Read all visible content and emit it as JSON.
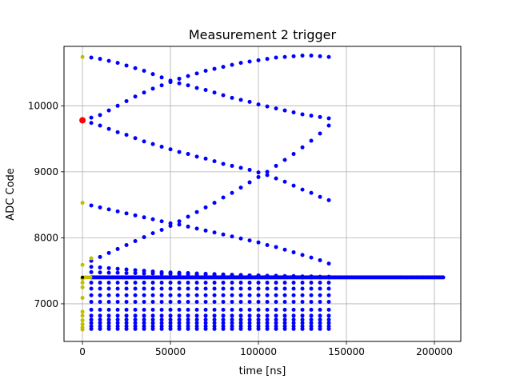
{
  "chart_data": {
    "type": "scatter",
    "title": "Measurement 2 trigger",
    "xlabel": "time [ns]",
    "ylabel": "ADC Code",
    "xlim": [
      -10500,
      215000
    ],
    "ylim": [
      6430,
      10900
    ],
    "x_ticks": [
      0,
      50000,
      100000,
      150000,
      200000
    ],
    "x_tick_labels": [
      "0",
      "50000",
      "100000",
      "150000",
      "200000"
    ],
    "y_ticks": [
      7000,
      8000,
      9000,
      10000
    ],
    "y_tick_labels": [
      "7000",
      "8000",
      "9000",
      "10000"
    ],
    "grid": true,
    "legend": "none",
    "series": [
      {
        "color": "#0000ff",
        "marker_size": 5,
        "groups": [
          {
            "x_start": 5000,
            "x_end": 140000,
            "count": 28,
            "y": [
              10730,
              10710,
              10680,
              10650,
              10610,
              10570,
              10530,
              10480,
              10430,
              10380,
              10340,
              10310,
              10270,
              10240,
              10200,
              10160,
              10120,
              10090,
              10060,
              10020,
              9990,
              9960,
              9930,
              9900,
              9870,
              9850,
              9830,
              9810
            ]
          },
          {
            "x_start": 5000,
            "x_end": 140000,
            "count": 28,
            "y": [
              9820,
              9860,
              9930,
              10000,
              10070,
              10140,
              10200,
              10260,
              10310,
              10360,
              10410,
              10450,
              10490,
              10530,
              10560,
              10590,
              10620,
              10650,
              10670,
              10690,
              10710,
              10730,
              10740,
              10750,
              10760,
              10760,
              10750,
              10740
            ]
          },
          {
            "x_start": 5000,
            "x_end": 140000,
            "count": 28,
            "y": [
              9740,
              9700,
              9650,
              9600,
              9560,
              9510,
              9460,
              9420,
              9380,
              9340,
              9300,
              9270,
              9230,
              9200,
              9160,
              9120,
              9090,
              9060,
              9030,
              8990,
              8950,
              8900,
              8850,
              8790,
              8730,
              8680,
              8620,
              8570
            ]
          },
          {
            "x_start": 5000,
            "x_end": 140000,
            "count": 28,
            "y": [
              7650,
              7710,
              7770,
              7830,
              7890,
              7950,
              8010,
              8070,
              8120,
              8180,
              8250,
              8320,
              8390,
              8460,
              8530,
              8610,
              8680,
              8760,
              8840,
              8920,
              9000,
              9090,
              9180,
              9270,
              9370,
              9470,
              9580,
              9700
            ]
          },
          {
            "x_start": 5000,
            "x_end": 140000,
            "count": 28,
            "y": [
              8490,
              8460,
              8430,
              8400,
              8370,
              8340,
              8310,
              8280,
              8250,
              8220,
              8200,
              8170,
              8140,
              8110,
              8080,
              8050,
              8020,
              7990,
              7960,
              7930,
              7890,
              7860,
              7820,
              7780,
              7740,
              7700,
              7660,
              7610
            ]
          },
          {
            "x_start": 5000,
            "x_end": 140000,
            "count": 28,
            "y": [
              7560,
              7550,
              7540,
              7530,
              7520,
              7510,
              7500,
              7490,
              7480,
              7475,
              7470,
              7465,
              7460,
              7455,
              7450,
              7445,
              7440,
              7435,
              7430,
              7425,
              7420,
              7415,
              7410,
              7405,
              7400,
              7400,
              7400,
              7400
            ]
          },
          {
            "x_start": 5000,
            "x_end": 140000,
            "count": 28,
            "y": [
              7480,
              7475,
              7470,
              7470,
              7465,
              7465,
              7460,
              7460,
              7455,
              7455,
              7450,
              7450,
              7445,
              7445,
              7440,
              7440,
              7435,
              7435,
              7430,
              7430,
              7425,
              7425,
              7420,
              7420,
              7415,
              7415,
              7410,
              7410
            ]
          },
          {
            "x_start": 5000,
            "x_end": 140000,
            "count": 28,
            "level": 7320
          },
          {
            "x_start": 5000,
            "x_end": 140000,
            "count": 28,
            "level": 7230
          },
          {
            "x_start": 5000,
            "x_end": 140000,
            "count": 28,
            "level": 7130
          },
          {
            "x_start": 5000,
            "x_end": 140000,
            "count": 28,
            "level": 7030
          },
          {
            "x_start": 5000,
            "x_end": 140000,
            "count": 28,
            "level": 6910
          },
          {
            "x_start": 5000,
            "x_end": 140000,
            "count": 28,
            "level": 6820
          },
          {
            "x_start": 5000,
            "x_end": 140000,
            "count": 28,
            "level": 6760
          },
          {
            "x_start": 5000,
            "x_end": 140000,
            "count": 28,
            "level": 6710
          },
          {
            "x_start": 5000,
            "x_end": 140000,
            "count": 28,
            "level": 6660
          },
          {
            "x_start": 5000,
            "x_end": 140000,
            "count": 28,
            "level": 6620
          },
          {
            "x_start": 5000,
            "x_end": 205000,
            "count": 200,
            "level": 7400
          }
        ]
      },
      {
        "color": "#bfbf00",
        "marker_size": 5,
        "points": [
          [
            0,
            10740
          ],
          [
            0,
            8530
          ],
          [
            0,
            7590
          ],
          [
            0,
            7400
          ],
          [
            0,
            7380
          ],
          [
            0,
            7320
          ],
          [
            0,
            7250
          ],
          [
            0,
            7090
          ],
          [
            0,
            6880
          ],
          [
            0,
            6820
          ],
          [
            0,
            6750
          ],
          [
            0,
            6690
          ],
          [
            0,
            6640
          ],
          [
            0,
            6610
          ],
          [
            1500,
            7400
          ],
          [
            3000,
            7400
          ],
          [
            4500,
            7400
          ],
          [
            5000,
            7690
          ]
        ]
      },
      {
        "color": "#000000",
        "marker_size": 4,
        "points": [
          [
            0,
            7400
          ]
        ]
      },
      {
        "color": "#ff0000",
        "marker_size": 8,
        "points": [
          [
            0,
            9780
          ]
        ]
      }
    ]
  }
}
